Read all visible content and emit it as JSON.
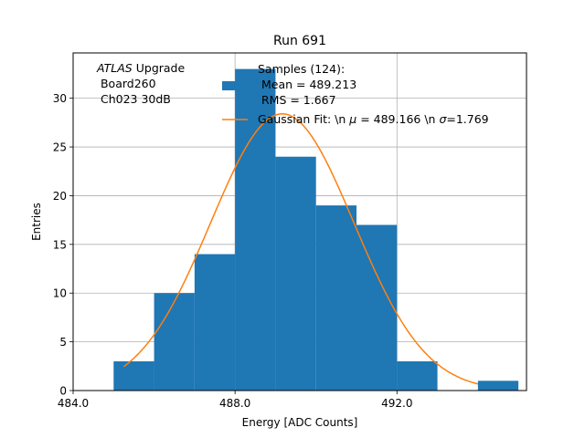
{
  "chart_data": {
    "type": "bar",
    "title": "Run 691",
    "xlabel": "Energy [ADC Counts]",
    "ylabel": "Entries",
    "xlim": [
      484.0,
      495.2
    ],
    "ylim": [
      0,
      34.65
    ],
    "grid": true,
    "x_ticks": [
      484.0,
      488.0,
      492.0
    ],
    "x_tick_labels": [
      "484.0",
      "488.0",
      "492.0"
    ],
    "y_ticks": [
      0,
      5,
      10,
      15,
      20,
      25,
      30
    ],
    "y_tick_labels": [
      "0",
      "5",
      "10",
      "15",
      "20",
      "25",
      "30"
    ],
    "bin_width": 1.0,
    "bins": [
      {
        "left": 485.0,
        "count": 3
      },
      {
        "left": 486.0,
        "count": 10
      },
      {
        "left": 487.0,
        "count": 14
      },
      {
        "left": 488.0,
        "count": 33
      },
      {
        "left": 489.0,
        "count": 24
      },
      {
        "left": 490.0,
        "count": 19
      },
      {
        "left": 491.0,
        "count": 17
      },
      {
        "left": 492.0,
        "count": 3
      },
      {
        "left": 494.0,
        "count": 1
      }
    ],
    "fit": {
      "type": "gaussian",
      "amplitude": 28.4,
      "mu": 489.166,
      "sigma": 1.769,
      "x_range": [
        485.25,
        494.0
      ]
    },
    "annotation_lines": [
      "Upgrade",
      " Board260",
      " Ch023 30dB"
    ],
    "annotation_italic": "ATLAS",
    "legend_location": "upper-right",
    "legend": [
      {
        "kind": "patch",
        "lines": [
          "Samples (124):",
          " Mean = 489.213",
          " RMS = 1.667"
        ]
      },
      {
        "kind": "line",
        "label_prefix": "Gaussian Fit: \\n ",
        "mu_symbol": "μ",
        "mu_text": " = 489.166 \\n ",
        "sigma_symbol": "σ",
        "sigma_text": "=1.769"
      }
    ],
    "colors": {
      "bars": "#1f77b4",
      "fit": "#ff7f0e",
      "grid": "#b0b0b0"
    }
  }
}
